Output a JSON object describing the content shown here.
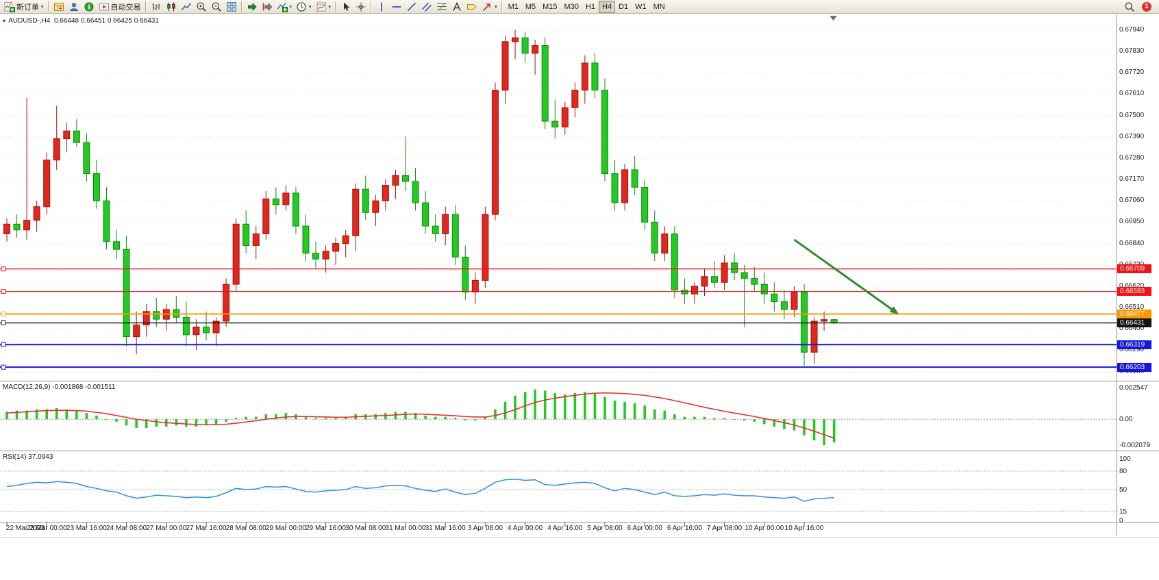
{
  "toolbar": {
    "new_order": {
      "label": "新订单"
    },
    "auto_trading": {
      "label": "自动交易"
    },
    "window_buttons": [
      "market-watch-icon",
      "navigator-icon",
      "terminal-icon"
    ],
    "chart_type_buttons": [
      "bars-icon",
      "candlesticks-icon",
      "line-chart-icon"
    ],
    "zoom_buttons": [
      "zoom-in-icon",
      "zoom-out-icon",
      "tile-windows-icon"
    ],
    "scroll_buttons": [
      "auto-scroll-icon",
      "chart-shift-icon"
    ],
    "dropdown_buttons": [
      "indicators-icon",
      "periods-icon",
      "templates-icon"
    ],
    "cursor_buttons": [
      "cursor-icon",
      "crosshair-icon"
    ],
    "drawing_buttons": [
      "vertical-line-icon",
      "horizontal-line-icon",
      "trendline-icon",
      "channel-icon",
      "fibonacci-icon",
      "text-icon",
      "label-icon",
      "arrows-icon"
    ],
    "timeframes": [
      "M1",
      "M5",
      "M15",
      "M30",
      "H1",
      "H4",
      "D1",
      "W1",
      "MN"
    ],
    "active_timeframe": "H4",
    "notification_count": "1"
  },
  "chart": {
    "symbol": "AUDUSD-,H4",
    "ohlc": {
      "open": "0.66448",
      "high": "0.66451",
      "low": "0.66425",
      "close": "0.66431"
    },
    "price_line_labels": [
      {
        "text": "0.66709",
        "color": "#f01414"
      },
      {
        "text": "0.66593",
        "color": "#f01414"
      },
      {
        "text": "0.66477",
        "color": "#ff9800"
      },
      {
        "text": "0.66431",
        "color": "#141414"
      },
      {
        "text": "0.66319",
        "color": "#1515dd"
      },
      {
        "text": "0.66203",
        "color": "#1515dd"
      }
    ]
  },
  "macd_panel": {
    "title": "MACD(12,26,9)",
    "main_value": "-0.001868",
    "signal_value": "-0.001511"
  },
  "rsi_panel": {
    "title": "RSI(14)",
    "value": "37.0943"
  },
  "colors": {
    "candle_bull": "#e0281e",
    "candle_bull_border": "#9c130d",
    "candle_bear": "#26c826",
    "candle_bear_border": "#0c8a0c",
    "grid": "#e0e0e0",
    "panel_border": "#8f8f8f"
  },
  "chart_data": {
    "type": "candlestick",
    "symbol": "AUDUSD-",
    "timeframe": "H4",
    "title": "AUDUSD-,H4",
    "ylim": [
      0.6614,
      0.6801
    ],
    "price_axis_ticks": [
      "0.67940",
      "0.67830",
      "0.67720",
      "0.67610",
      "0.67500",
      "0.67390",
      "0.67280",
      "0.67170",
      "0.67060",
      "0.66950",
      "0.66840",
      "0.66730",
      "0.66620",
      "0.66510",
      "0.66400",
      "0.66290",
      "0.66180"
    ],
    "time_axis_ticks": [
      "22 Mar 2023",
      "23 Mar 00:00",
      "23 Mar 16:00",
      "24 Mar 08:00",
      "27 Mar 00:00",
      "27 Mar 16:00",
      "28 Mar 08:00",
      "29 Mar 00:00",
      "29 Mar 16:00",
      "30 Mar 08:00",
      "31 Mar 00:00",
      "31 Mar 16:00",
      "3 Apr 08:00",
      "4 Apr 00:00",
      "4 Apr 16:00",
      "5 Apr 08:00",
      "6 Apr 00:00",
      "6 Apr 16:00",
      "7 Apr 08:00",
      "10 Apr 00:00",
      "10 Apr 16:00"
    ],
    "bars_per_time_tick": 4,
    "candles_ohlc": [
      [
        0.6689,
        0.6697,
        0.6685,
        0.6694
      ],
      [
        0.6694,
        0.6699,
        0.6687,
        0.6691
      ],
      [
        0.6691,
        0.6759,
        0.6686,
        0.6696
      ],
      [
        0.6696,
        0.6706,
        0.669,
        0.6703
      ],
      [
        0.6703,
        0.6731,
        0.6699,
        0.6727
      ],
      [
        0.6727,
        0.6755,
        0.6722,
        0.6738
      ],
      [
        0.6738,
        0.6746,
        0.6731,
        0.6742
      ],
      [
        0.6742,
        0.6748,
        0.6734,
        0.6736
      ],
      [
        0.6736,
        0.6741,
        0.6716,
        0.672
      ],
      [
        0.672,
        0.6727,
        0.6702,
        0.6706
      ],
      [
        0.6706,
        0.6713,
        0.6681,
        0.6685
      ],
      [
        0.6685,
        0.6691,
        0.6676,
        0.6681
      ],
      [
        0.6681,
        0.6688,
        0.6631,
        0.6636
      ],
      [
        0.6636,
        0.6649,
        0.6627,
        0.6642
      ],
      [
        0.6642,
        0.6653,
        0.6636,
        0.6649
      ],
      [
        0.6649,
        0.6656,
        0.6641,
        0.6645
      ],
      [
        0.6645,
        0.6653,
        0.6639,
        0.665
      ],
      [
        0.665,
        0.6657,
        0.6643,
        0.6646
      ],
      [
        0.6646,
        0.6654,
        0.6631,
        0.6637
      ],
      [
        0.6637,
        0.6645,
        0.6629,
        0.6641
      ],
      [
        0.6641,
        0.6649,
        0.6634,
        0.6638
      ],
      [
        0.6638,
        0.6646,
        0.6631,
        0.6644
      ],
      [
        0.6644,
        0.6666,
        0.6641,
        0.6663
      ],
      [
        0.6663,
        0.6697,
        0.6659,
        0.6694
      ],
      [
        0.6694,
        0.6701,
        0.6679,
        0.6683
      ],
      [
        0.6683,
        0.6693,
        0.6676,
        0.6689
      ],
      [
        0.6689,
        0.6711,
        0.6686,
        0.6707
      ],
      [
        0.6707,
        0.6713,
        0.6699,
        0.6704
      ],
      [
        0.6704,
        0.6714,
        0.6701,
        0.671
      ],
      [
        0.671,
        0.6713,
        0.6689,
        0.6693
      ],
      [
        0.6693,
        0.6699,
        0.6675,
        0.6679
      ],
      [
        0.6679,
        0.6685,
        0.6671,
        0.6676
      ],
      [
        0.6676,
        0.6683,
        0.6669,
        0.668
      ],
      [
        0.668,
        0.6687,
        0.6673,
        0.6684
      ],
      [
        0.6684,
        0.6691,
        0.6677,
        0.6688
      ],
      [
        0.6688,
        0.6715,
        0.668,
        0.6712
      ],
      [
        0.6712,
        0.6719,
        0.6696,
        0.67
      ],
      [
        0.67,
        0.6709,
        0.6693,
        0.6706
      ],
      [
        0.6706,
        0.6717,
        0.6701,
        0.6714
      ],
      [
        0.6714,
        0.6722,
        0.6707,
        0.6719
      ],
      [
        0.6719,
        0.6739,
        0.6711,
        0.6716
      ],
      [
        0.6716,
        0.6723,
        0.6701,
        0.6705
      ],
      [
        0.6705,
        0.6711,
        0.6689,
        0.6693
      ],
      [
        0.6693,
        0.6699,
        0.6685,
        0.6689
      ],
      [
        0.6689,
        0.6703,
        0.6683,
        0.6699
      ],
      [
        0.6699,
        0.6704,
        0.6673,
        0.6677
      ],
      [
        0.6677,
        0.6683,
        0.6655,
        0.6659
      ],
      [
        0.6659,
        0.6669,
        0.6653,
        0.6665
      ],
      [
        0.6665,
        0.6703,
        0.6661,
        0.6699
      ],
      [
        0.6699,
        0.6767,
        0.6696,
        0.6763
      ],
      [
        0.6763,
        0.6791,
        0.6756,
        0.6788
      ],
      [
        0.6788,
        0.6794,
        0.6779,
        0.679
      ],
      [
        0.679,
        0.6793,
        0.6777,
        0.6782
      ],
      [
        0.6782,
        0.6789,
        0.6771,
        0.6786
      ],
      [
        0.6786,
        0.679,
        0.6743,
        0.6747
      ],
      [
        0.6747,
        0.6758,
        0.6738,
        0.6744
      ],
      [
        0.6744,
        0.6757,
        0.674,
        0.6754
      ],
      [
        0.6754,
        0.6767,
        0.6749,
        0.6763
      ],
      [
        0.6763,
        0.6781,
        0.6756,
        0.6777
      ],
      [
        0.6777,
        0.6782,
        0.6759,
        0.6763
      ],
      [
        0.6763,
        0.6769,
        0.6716,
        0.672
      ],
      [
        0.672,
        0.6727,
        0.6701,
        0.6705
      ],
      [
        0.6705,
        0.6725,
        0.6701,
        0.6722
      ],
      [
        0.6722,
        0.6729,
        0.6709,
        0.6713
      ],
      [
        0.6713,
        0.6717,
        0.6691,
        0.6695
      ],
      [
        0.6695,
        0.6701,
        0.6675,
        0.6679
      ],
      [
        0.6679,
        0.6693,
        0.6675,
        0.6689
      ],
      [
        0.6689,
        0.6693,
        0.6656,
        0.666
      ],
      [
        0.666,
        0.6666,
        0.6653,
        0.6658
      ],
      [
        0.6658,
        0.6664,
        0.6653,
        0.6662
      ],
      [
        0.6662,
        0.6671,
        0.6657,
        0.6667
      ],
      [
        0.6667,
        0.6675,
        0.6661,
        0.6664
      ],
      [
        0.6664,
        0.6678,
        0.666,
        0.6674
      ],
      [
        0.6674,
        0.6679,
        0.6665,
        0.6669
      ],
      [
        0.6669,
        0.6673,
        0.6641,
        0.6666
      ],
      [
        0.6666,
        0.6672,
        0.6659,
        0.6663
      ],
      [
        0.6663,
        0.6669,
        0.6653,
        0.6658
      ],
      [
        0.6658,
        0.6664,
        0.6649,
        0.6654
      ],
      [
        0.6654,
        0.666,
        0.6645,
        0.665
      ],
      [
        0.665,
        0.6662,
        0.6646,
        0.6659
      ],
      [
        0.6659,
        0.6663,
        0.6621,
        0.6628
      ],
      [
        0.6628,
        0.6646,
        0.6622,
        0.6644
      ],
      [
        0.6644,
        0.6649,
        0.6639,
        0.66448
      ],
      [
        0.66448,
        0.66451,
        0.66425,
        0.66431
      ]
    ],
    "horizontal_lines": [
      {
        "price": 0.66709,
        "color": "#f01414",
        "width": 1.3,
        "axis_label": "0.66709"
      },
      {
        "price": 0.66593,
        "color": "#f01414",
        "width": 1.3,
        "axis_label": "0.66593"
      },
      {
        "price": 0.66477,
        "color": "#ff9800",
        "width": 2,
        "axis_label": "0.66477"
      },
      {
        "price": 0.66431,
        "color": "#141414",
        "width": 1.4,
        "axis_label": "0.66431"
      },
      {
        "price": 0.66319,
        "color": "#1515dd",
        "width": 2,
        "axis_label": "0.66319"
      },
      {
        "price": 0.66203,
        "color": "#1515dd",
        "width": 2,
        "axis_label": "0.66203"
      }
    ],
    "arrow_annotation": {
      "from_bar": 79,
      "from_price": 0.6686,
      "to_bar": 89.5,
      "to_price": 0.66475,
      "color": "#2e8b2e"
    },
    "indicators": {
      "macd": {
        "params": "12,26,9",
        "current_main": -0.001868,
        "current_signal": -0.001511,
        "axis_ticks": [
          "0.002547",
          "0.00",
          "-0.002079"
        ],
        "ylim": [
          -0.002079,
          0.002547
        ],
        "histogram_color": "#26c826",
        "signal_color": "#e8312a",
        "histogram": [
          0.0006,
          0.0007,
          0.0007,
          0.0008,
          0.0008,
          0.0009,
          0.0008,
          0.0007,
          0.0005,
          0.0003,
          0.0,
          -0.0002,
          -0.0005,
          -0.0007,
          -0.0007,
          -0.0006,
          -0.0006,
          -0.0005,
          -0.0006,
          -0.0006,
          -0.0005,
          -0.0004,
          -0.0002,
          0.0001,
          0.0002,
          0.0002,
          0.0004,
          0.0004,
          0.0005,
          0.0004,
          0.0002,
          0.0001,
          0.0001,
          0.0001,
          0.0002,
          0.0004,
          0.0004,
          0.0004,
          0.0005,
          0.0006,
          0.0006,
          0.0005,
          0.0003,
          0.0002,
          0.0002,
          0.0001,
          -0.0001,
          -0.0001,
          0.0002,
          0.0008,
          0.0014,
          0.0019,
          0.0022,
          0.0024,
          0.0023,
          0.0021,
          0.002,
          0.0021,
          0.0022,
          0.0021,
          0.0018,
          0.0015,
          0.0014,
          0.0013,
          0.0011,
          0.0008,
          0.0007,
          0.0004,
          0.0002,
          0.0002,
          0.0002,
          0.0001,
          0.0001,
          0.0,
          -0.0001,
          -0.0002,
          -0.0004,
          -0.0006,
          -0.0008,
          -0.0009,
          -0.0013,
          -0.0017,
          -0.002079,
          -0.001868
        ],
        "signal": [
          0.0005,
          0.00055,
          0.0006,
          0.00065,
          0.0007,
          0.00072,
          0.00072,
          0.0007,
          0.00065,
          0.00055,
          0.00045,
          0.0003,
          0.00015,
          0.0,
          -0.0001,
          -0.0002,
          -0.00028,
          -0.00033,
          -0.00038,
          -0.00042,
          -0.00044,
          -0.00044,
          -0.0004,
          -0.00032,
          -0.00022,
          -0.00012,
          0.0,
          0.0001,
          0.00018,
          0.00022,
          0.00022,
          0.0002,
          0.00018,
          0.00016,
          0.00016,
          0.0002,
          0.00024,
          0.00027,
          0.0003,
          0.00035,
          0.0004,
          0.00042,
          0.0004,
          0.00036,
          0.00032,
          0.00028,
          0.00022,
          0.00018,
          0.00018,
          0.0003,
          0.0005,
          0.00078,
          0.00108,
          0.00135,
          0.00155,
          0.0017,
          0.00182,
          0.00192,
          0.00202,
          0.0021,
          0.00212,
          0.0021,
          0.00206,
          0.002,
          0.00192,
          0.0018,
          0.00166,
          0.0015,
          0.00132,
          0.00114,
          0.00096,
          0.0008,
          0.00064,
          0.0005,
          0.00036,
          0.00022,
          6e-05,
          -0.0001,
          -0.00028,
          -0.00046,
          -0.0007,
          -0.00096,
          -0.00124,
          -0.001511
        ]
      },
      "rsi": {
        "period": 14,
        "current": 37.0943,
        "axis_ticks": [
          "100",
          "80",
          "50",
          "15",
          "0"
        ],
        "levels": [
          80,
          50,
          15
        ],
        "line_color": "#2f8fe0",
        "values": [
          55,
          57,
          60,
          62,
          61,
          63,
          62,
          60,
          55,
          52,
          48,
          46,
          40,
          36,
          38,
          41,
          40,
          39,
          37,
          38,
          37,
          39,
          45,
          52,
          50,
          51,
          55,
          54,
          55,
          51,
          47,
          46,
          48,
          49,
          50,
          55,
          52,
          53,
          56,
          57,
          56,
          52,
          49,
          47,
          51,
          46,
          42,
          44,
          52,
          62,
          66,
          67,
          65,
          66,
          58,
          57,
          59,
          61,
          62,
          60,
          53,
          48,
          52,
          50,
          46,
          42,
          46,
          40,
          39,
          40,
          42,
          41,
          43,
          41,
          40,
          40,
          38,
          37,
          36,
          38,
          31,
          35,
          36,
          37.09
        ]
      }
    }
  }
}
